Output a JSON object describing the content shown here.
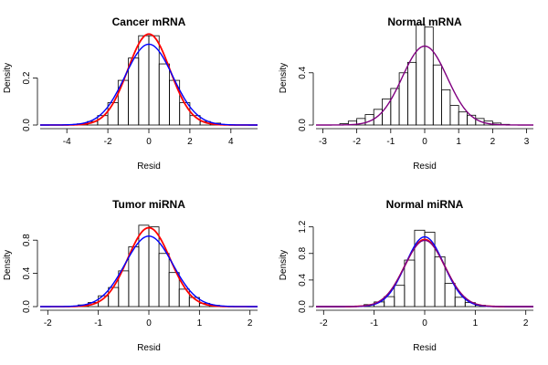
{
  "colors": {
    "red": "#ff0000",
    "blue": "#0000ff",
    "purple": "#800080",
    "bars": "#000000"
  },
  "chart_data": [
    {
      "type": "histogram",
      "title": "Cancer mRNA",
      "xlabel": "Resid",
      "ylabel": "Density",
      "xlim": [
        -5.3,
        5.3
      ],
      "ylim": [
        0,
        0.4
      ],
      "xticks": [
        -4,
        -2,
        0,
        2,
        4
      ],
      "yticks": [
        0.0,
        0.2
      ],
      "ytick_labels": [
        "0.0",
        "0.2"
      ],
      "bin_edges": [
        -3.5,
        -3,
        -2.5,
        -2,
        -1.5,
        -1,
        -0.5,
        0,
        0.5,
        1,
        1.5,
        2,
        2.5,
        3,
        3.5
      ],
      "densities": [
        0.005,
        0.015,
        0.04,
        0.095,
        0.19,
        0.285,
        0.38,
        0.38,
        0.26,
        0.19,
        0.095,
        0.04,
        0.015,
        0.008
      ],
      "series": [
        {
          "name": "red curve",
          "distribution": "normal",
          "mean": 0,
          "sd": 1.03,
          "color": "red"
        },
        {
          "name": "blue curve",
          "distribution": "normal",
          "mean": 0,
          "sd": 1.16,
          "color": "blue"
        }
      ]
    },
    {
      "type": "histogram",
      "title": "Normal mRNA",
      "xlabel": "Resid",
      "ylabel": "Density",
      "xlim": [
        -3.2,
        3.2
      ],
      "ylim": [
        0,
        0.72
      ],
      "xticks": [
        -3,
        -2,
        -1,
        0,
        1,
        2,
        3
      ],
      "yticks": [
        0.0,
        0.4
      ],
      "ytick_labels": [
        "0.0",
        "0.4"
      ],
      "bin_edges": [
        -2.5,
        -2.25,
        -2,
        -1.75,
        -1.5,
        -1.25,
        -1,
        -0.75,
        -0.5,
        -0.25,
        0,
        0.25,
        0.5,
        0.75,
        1,
        1.25,
        1.5,
        1.75,
        2,
        2.25,
        2.5
      ],
      "densities": [
        0.01,
        0.03,
        0.05,
        0.08,
        0.12,
        0.2,
        0.28,
        0.4,
        0.48,
        0.77,
        0.75,
        0.46,
        0.27,
        0.15,
        0.1,
        0.075,
        0.05,
        0.03,
        0.015,
        0.005
      ],
      "series": [
        {
          "name": "purple curve",
          "distribution": "normal",
          "mean": 0,
          "sd": 0.66,
          "color": "purple"
        }
      ]
    },
    {
      "type": "histogram",
      "title": "Tumor miRNA",
      "xlabel": "Resid",
      "ylabel": "Density",
      "xlim": [
        -2.15,
        2.15
      ],
      "ylim": [
        0,
        1.0
      ],
      "xticks": [
        -2,
        -1,
        0,
        1,
        2
      ],
      "yticks": [
        0.0,
        0.4,
        0.8
      ],
      "ytick_labels": [
        "0.0",
        "0.4",
        "0.8"
      ],
      "bin_edges": [
        -1.4,
        -1.2,
        -1,
        -0.8,
        -0.6,
        -0.4,
        -0.2,
        0,
        0.2,
        0.4,
        0.6,
        0.8,
        1,
        1.2,
        1.4
      ],
      "densities": [
        0.02,
        0.05,
        0.13,
        0.23,
        0.43,
        0.72,
        0.98,
        0.96,
        0.64,
        0.41,
        0.21,
        0.11,
        0.04,
        0.015
      ],
      "series": [
        {
          "name": "red curve",
          "distribution": "normal",
          "mean": 0,
          "sd": 0.42,
          "color": "red"
        },
        {
          "name": "blue curve",
          "distribution": "normal",
          "mean": 0,
          "sd": 0.47,
          "color": "blue"
        }
      ]
    },
    {
      "type": "histogram",
      "title": "Normal miRNA",
      "xlabel": "Resid",
      "ylabel": "Density",
      "xlim": [
        -2.15,
        2.15
      ],
      "ylim": [
        0,
        1.25
      ],
      "xticks": [
        -2,
        -1,
        0,
        1,
        2
      ],
      "yticks": [
        0.0,
        0.4,
        0.8,
        1.2
      ],
      "ytick_labels": [
        "0.0",
        "0.4",
        "0.8",
        "1.2"
      ],
      "bin_edges": [
        -1.2,
        -1,
        -0.8,
        -0.6,
        -0.4,
        -0.2,
        0,
        0.2,
        0.4,
        0.6,
        0.8,
        1,
        1.2
      ],
      "densities": [
        0.03,
        0.07,
        0.15,
        0.32,
        0.7,
        1.15,
        1.12,
        0.75,
        0.35,
        0.14,
        0.06,
        0.02
      ],
      "series": [
        {
          "name": "red curve",
          "distribution": "normal",
          "mean": 0,
          "sd": 0.395,
          "color": "red"
        },
        {
          "name": "blue curve",
          "distribution": "normal",
          "mean": 0,
          "sd": 0.38,
          "color": "blue"
        },
        {
          "name": "purple curve",
          "distribution": "normal",
          "mean": 0,
          "sd": 0.4,
          "color": "purple"
        }
      ]
    }
  ]
}
